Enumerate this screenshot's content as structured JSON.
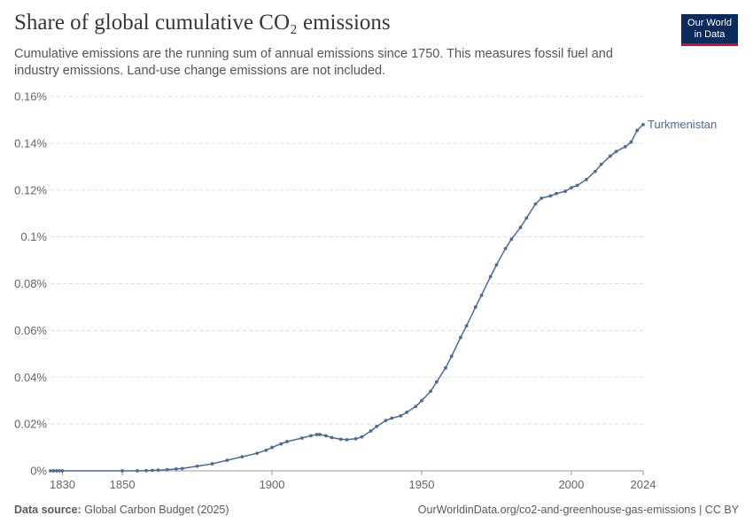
{
  "header": {
    "title": "Share of global cumulative CO₂ emissions",
    "subtitle": "Cumulative emissions are the running sum of annual emissions since 1750. This measures fossil fuel and industry emissions. Land-use change emissions are not included."
  },
  "logo": {
    "line1": "Our World",
    "line2": "in Data"
  },
  "footer": {
    "source_label": "Data source:",
    "source": "Global Carbon Budget (2025)",
    "url": "OurWorldinData.org/co2-and-greenhouse-gas-emissions | CC BY"
  },
  "colors": {
    "series": "#4c6a9c",
    "grid": "#dddddd",
    "axis_text": "#666666"
  },
  "chart_data": {
    "type": "line",
    "title": "Share of global cumulative CO₂ emissions",
    "xlabel": "",
    "ylabel": "",
    "xlim": [
      1826,
      2024
    ],
    "ylim": [
      0,
      0.16
    ],
    "x_ticks": [
      1830,
      1850,
      1900,
      1950,
      2000,
      2024
    ],
    "y_ticks": [
      0,
      0.02,
      0.04,
      0.06,
      0.08,
      0.1,
      0.12,
      0.14,
      0.16
    ],
    "y_tick_labels": [
      "0%",
      "0.02%",
      "0.04%",
      "0.06%",
      "0.08%",
      "0.1%",
      "0.12%",
      "0.14%",
      "0.16%"
    ],
    "grid": "horizontal dashed",
    "legend": "inline label at line end",
    "series": [
      {
        "name": "Turkmenistan",
        "x": [
          1826,
          1827,
          1828,
          1829,
          1830,
          1850,
          1855,
          1858,
          1860,
          1862,
          1865,
          1868,
          1870,
          1875,
          1880,
          1885,
          1890,
          1895,
          1898,
          1900,
          1903,
          1905,
          1910,
          1913,
          1915,
          1916,
          1918,
          1920,
          1923,
          1925,
          1928,
          1930,
          1933,
          1935,
          1938,
          1940,
          1943,
          1945,
          1948,
          1950,
          1953,
          1955,
          1958,
          1960,
          1963,
          1965,
          1968,
          1970,
          1973,
          1975,
          1978,
          1980,
          1983,
          1985,
          1988,
          1990,
          1993,
          1995,
          1998,
          2000,
          2002,
          2005,
          2008,
          2010,
          2013,
          2015,
          2018,
          2020,
          2022,
          2024
        ],
        "values": [
          0,
          0,
          0,
          0,
          0,
          0,
          0,
          0.0001,
          0.0002,
          0.0003,
          0.0005,
          0.0008,
          0.001,
          0.002,
          0.003,
          0.0045,
          0.006,
          0.0075,
          0.0088,
          0.01,
          0.0115,
          0.0125,
          0.014,
          0.015,
          0.0155,
          0.0155,
          0.015,
          0.0142,
          0.0135,
          0.0133,
          0.0137,
          0.0145,
          0.017,
          0.019,
          0.0215,
          0.0225,
          0.0235,
          0.025,
          0.0275,
          0.03,
          0.034,
          0.038,
          0.044,
          0.049,
          0.057,
          0.062,
          0.07,
          0.075,
          0.083,
          0.088,
          0.095,
          0.099,
          0.104,
          0.108,
          0.114,
          0.1165,
          0.1175,
          0.1185,
          0.1195,
          0.121,
          0.122,
          0.1245,
          0.128,
          0.131,
          0.1345,
          0.1365,
          0.1385,
          0.1405,
          0.1455,
          0.148
        ]
      }
    ]
  }
}
